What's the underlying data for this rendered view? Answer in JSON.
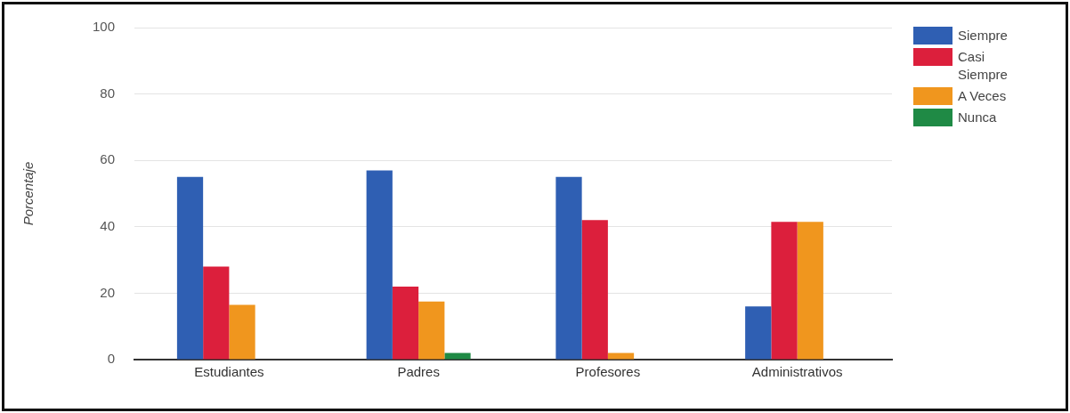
{
  "chart_data": {
    "type": "bar",
    "ylabel": "Porcentaje",
    "categories": [
      "Estudiantes",
      "Padres",
      "Profesores",
      "Administrativos"
    ],
    "series": [
      {
        "name": "Siempre",
        "color": "#2f5fb3",
        "values": [
          55,
          57,
          55,
          16
        ]
      },
      {
        "name": "Casi Siempre",
        "color": "#dc1f3c",
        "values": [
          28,
          22,
          42,
          41.5
        ]
      },
      {
        "name": "A Veces",
        "color": "#f0961e",
        "values": [
          16.5,
          17.5,
          2,
          41.5
        ]
      },
      {
        "name": "Nunca",
        "color": "#1f8a45",
        "values": [
          0,
          2,
          0,
          0
        ]
      }
    ],
    "ylim": [
      0,
      100
    ],
    "yticks": [
      0,
      20,
      40,
      60,
      80,
      100
    ],
    "grid": "y",
    "legend": "top right"
  }
}
